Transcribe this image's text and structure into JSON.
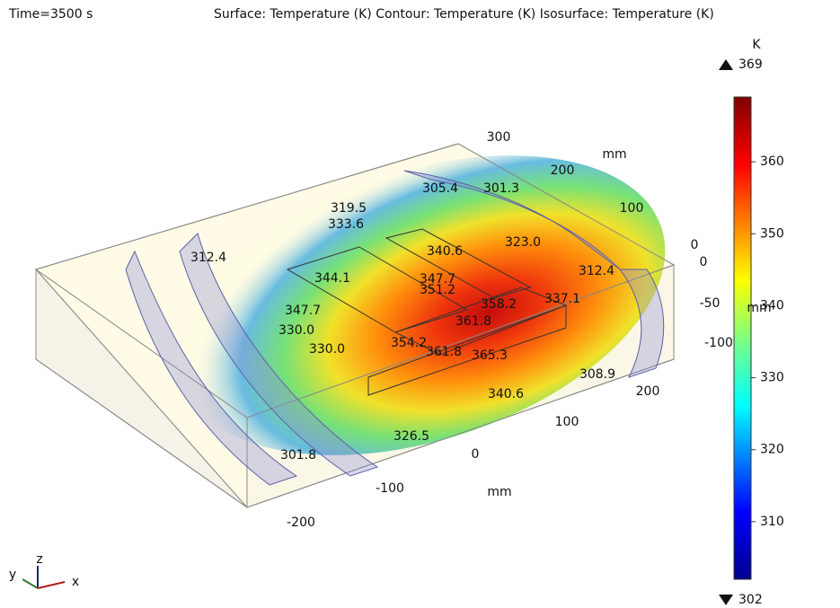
{
  "header": {
    "time": "Time=3500 s",
    "plot_title": "Surface: Temperature (K)  Contour: Temperature (K)  Isosurface: Temperature (K)"
  },
  "colorbar": {
    "unit": "K",
    "min": 302,
    "max": 369,
    "ticks": [
      310,
      320,
      330,
      340,
      350,
      360
    ]
  },
  "axes": {
    "labels": [
      "300",
      "200",
      "mm",
      "100",
      "0",
      "0",
      "-50",
      "mm",
      "-100",
      "200",
      "100",
      "0",
      "mm",
      "-100",
      "-200"
    ]
  },
  "contour_labels": [
    "305.4",
    "301.3",
    "319.5",
    "333.6",
    "340.6",
    "323.0",
    "312.4",
    "344.1",
    "347.7",
    "351.2",
    "312.4",
    "358.2",
    "337.1",
    "347.7",
    "330.0",
    "361.8",
    "354.2",
    "330.0",
    "361.8",
    "365.3",
    "308.9",
    "340.6",
    "326.5",
    "301.8"
  ],
  "triad": {
    "z": "z",
    "y": "y",
    "x": "x"
  }
}
